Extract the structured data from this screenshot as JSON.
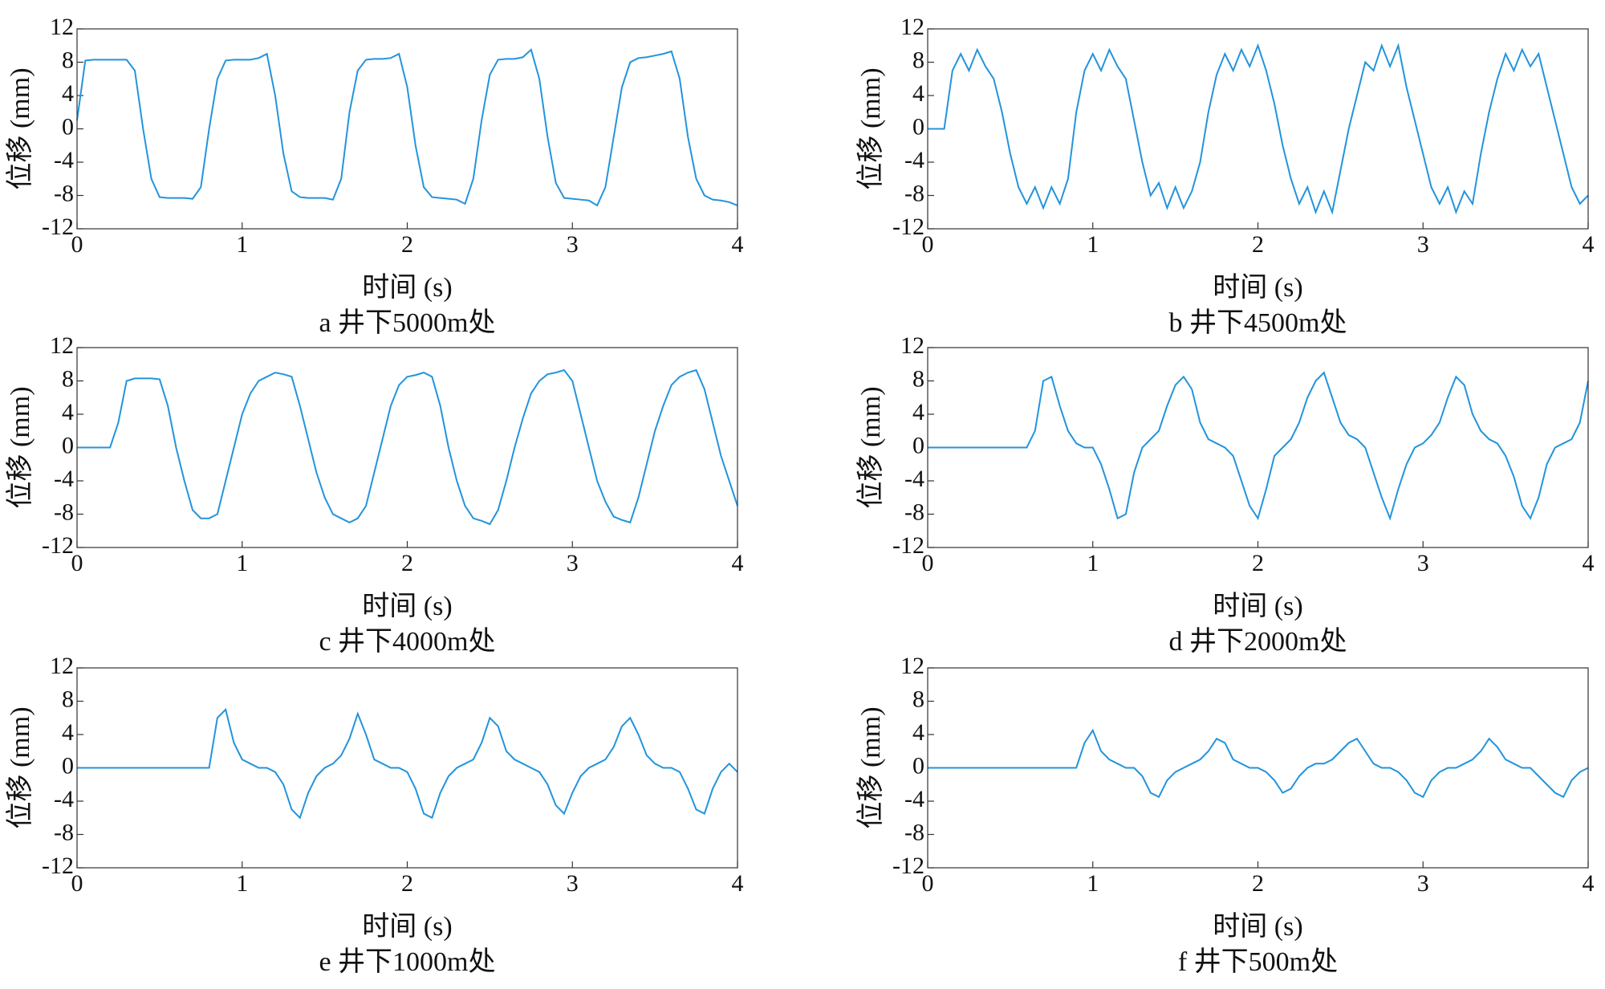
{
  "chart_data": [
    {
      "type": "line",
      "title": "a 井下5000m处",
      "x_label": "时间 (s)",
      "y_label": "位移 (mm)",
      "xlim": [
        0,
        4
      ],
      "ylim": [
        -12,
        12
      ],
      "xticks": [
        0,
        1,
        2,
        3,
        4
      ],
      "yticks": [
        -12,
        -8,
        -4,
        0,
        4,
        8,
        12
      ],
      "x": [
        0,
        0.05,
        0.1,
        0.15,
        0.2,
        0.25,
        0.3,
        0.35,
        0.4,
        0.45,
        0.5,
        0.55,
        0.6,
        0.65,
        0.7,
        0.75,
        0.8,
        0.85,
        0.9,
        0.95,
        1,
        1.05,
        1.1,
        1.15,
        1.2,
        1.25,
        1.3,
        1.35,
        1.4,
        1.45,
        1.5,
        1.55,
        1.6,
        1.65,
        1.7,
        1.75,
        1.8,
        1.85,
        1.9,
        1.95,
        2,
        2.05,
        2.1,
        2.15,
        2.2,
        2.25,
        2.3,
        2.35,
        2.4,
        2.45,
        2.5,
        2.55,
        2.6,
        2.65,
        2.7,
        2.75,
        2.8,
        2.85,
        2.9,
        2.95,
        3,
        3.05,
        3.1,
        3.15,
        3.2,
        3.25,
        3.3,
        3.35,
        3.4,
        3.45,
        3.5,
        3.55,
        3.6,
        3.65,
        3.7,
        3.75,
        3.8,
        3.85,
        3.9,
        3.95,
        4
      ],
      "series": [
        {
          "color": "#2394dc",
          "values": [
            1,
            8.2,
            8.3,
            8.3,
            8.3,
            8.3,
            8.3,
            7,
            0,
            -6,
            -8.2,
            -8.3,
            -8.3,
            -8.3,
            -8.4,
            -7,
            0,
            6,
            8.2,
            8.3,
            8.3,
            8.3,
            8.5,
            9,
            4,
            -3,
            -7.5,
            -8.2,
            -8.3,
            -8.3,
            -8.3,
            -8.5,
            -6,
            2,
            7,
            8.3,
            8.4,
            8.4,
            8.5,
            9,
            5,
            -2,
            -7,
            -8.2,
            -8.3,
            -8.4,
            -8.5,
            -9,
            -6,
            1,
            6.5,
            8.3,
            8.4,
            8.4,
            8.6,
            9.5,
            6,
            -1,
            -6.5,
            -8.3,
            -8.4,
            -8.5,
            -8.6,
            -9.2,
            -7,
            -1,
            5,
            8,
            8.5,
            8.6,
            8.8,
            9,
            9.3,
            6,
            -1,
            -6,
            -8,
            -8.5,
            -8.6,
            -8.8,
            -9.2
          ]
        }
      ]
    },
    {
      "type": "line",
      "title": "b 井下4500m处",
      "x_label": "时间 (s)",
      "y_label": "位移 (mm)",
      "xlim": [
        0,
        4
      ],
      "ylim": [
        -12,
        12
      ],
      "xticks": [
        0,
        1,
        2,
        3,
        4
      ],
      "yticks": [
        -12,
        -8,
        -4,
        0,
        4,
        8,
        12
      ],
      "x": [
        0,
        0.05,
        0.1,
        0.15,
        0.2,
        0.25,
        0.3,
        0.35,
        0.4,
        0.45,
        0.5,
        0.55,
        0.6,
        0.65,
        0.7,
        0.75,
        0.8,
        0.85,
        0.9,
        0.95,
        1,
        1.05,
        1.1,
        1.15,
        1.2,
        1.25,
        1.3,
        1.35,
        1.4,
        1.45,
        1.5,
        1.55,
        1.6,
        1.65,
        1.7,
        1.75,
        1.8,
        1.85,
        1.9,
        1.95,
        2,
        2.05,
        2.1,
        2.15,
        2.2,
        2.25,
        2.3,
        2.35,
        2.4,
        2.45,
        2.5,
        2.55,
        2.6,
        2.65,
        2.7,
        2.75,
        2.8,
        2.85,
        2.9,
        2.95,
        3,
        3.05,
        3.1,
        3.15,
        3.2,
        3.25,
        3.3,
        3.35,
        3.4,
        3.45,
        3.5,
        3.55,
        3.6,
        3.65,
        3.7,
        3.75,
        3.8,
        3.85,
        3.9,
        3.95,
        4
      ],
      "series": [
        {
          "color": "#2394dc",
          "values": [
            0,
            0,
            0,
            7,
            9,
            7,
            9.5,
            7.5,
            6,
            2,
            -3,
            -7,
            -9,
            -7,
            -9.5,
            -7,
            -9,
            -6,
            2,
            7,
            9,
            7,
            9.5,
            7.5,
            6,
            1,
            -4,
            -8,
            -6.5,
            -9.5,
            -7,
            -9.5,
            -7.5,
            -4,
            2,
            6.5,
            9,
            7,
            9.5,
            7.5,
            10,
            7,
            3,
            -2,
            -6,
            -9,
            -7,
            -10,
            -7.5,
            -10,
            -5,
            0,
            4,
            8,
            7,
            10,
            7.5,
            10,
            5,
            1,
            -3,
            -7,
            -9,
            -7,
            -10,
            -7.5,
            -9,
            -3,
            2,
            6,
            9,
            7,
            9.5,
            7.5,
            9,
            5,
            1,
            -3,
            -7,
            -9,
            -8
          ]
        }
      ]
    },
    {
      "type": "line",
      "title": "c 井下4000m处",
      "x_label": "时间 (s)",
      "y_label": "位移 (mm)",
      "xlim": [
        0,
        4
      ],
      "ylim": [
        -12,
        12
      ],
      "xticks": [
        0,
        1,
        2,
        3,
        4
      ],
      "yticks": [
        -12,
        -8,
        -4,
        0,
        4,
        8,
        12
      ],
      "x": [
        0,
        0.05,
        0.1,
        0.15,
        0.2,
        0.25,
        0.3,
        0.35,
        0.4,
        0.45,
        0.5,
        0.55,
        0.6,
        0.65,
        0.7,
        0.75,
        0.8,
        0.85,
        0.9,
        0.95,
        1,
        1.05,
        1.1,
        1.15,
        1.2,
        1.25,
        1.3,
        1.35,
        1.4,
        1.45,
        1.5,
        1.55,
        1.6,
        1.65,
        1.7,
        1.75,
        1.8,
        1.85,
        1.9,
        1.95,
        2,
        2.05,
        2.1,
        2.15,
        2.2,
        2.25,
        2.3,
        2.35,
        2.4,
        2.45,
        2.5,
        2.55,
        2.6,
        2.65,
        2.7,
        2.75,
        2.8,
        2.85,
        2.9,
        2.95,
        3,
        3.05,
        3.1,
        3.15,
        3.2,
        3.25,
        3.3,
        3.35,
        3.4,
        3.45,
        3.5,
        3.55,
        3.6,
        3.65,
        3.7,
        3.75,
        3.8,
        3.85,
        3.9,
        3.95,
        4
      ],
      "series": [
        {
          "color": "#2394dc",
          "values": [
            0,
            0,
            0,
            0,
            0,
            3,
            8,
            8.3,
            8.3,
            8.3,
            8.2,
            5,
            0,
            -4,
            -7.5,
            -8.5,
            -8.5,
            -8,
            -4,
            0,
            4,
            6.5,
            8,
            8.5,
            9,
            8.8,
            8.5,
            5,
            1,
            -3,
            -6,
            -8,
            -8.5,
            -9,
            -8.5,
            -7,
            -3,
            1,
            5,
            7.5,
            8.5,
            8.7,
            9,
            8.5,
            5,
            0,
            -4,
            -7,
            -8.5,
            -8.8,
            -9.2,
            -7.5,
            -4,
            0,
            3.5,
            6.5,
            8,
            8.8,
            9,
            9.3,
            8,
            4,
            0,
            -4,
            -6.5,
            -8.3,
            -8.7,
            -9,
            -6,
            -2,
            2,
            5,
            7.5,
            8.5,
            9,
            9.3,
            7,
            3,
            -1,
            -4,
            -7
          ]
        }
      ]
    },
    {
      "type": "line",
      "title": "d 井下2000m处",
      "x_label": "时间 (s)",
      "y_label": "位移 (mm)",
      "xlim": [
        0,
        4
      ],
      "ylim": [
        -12,
        12
      ],
      "xticks": [
        0,
        1,
        2,
        3,
        4
      ],
      "yticks": [
        -12,
        -8,
        -4,
        0,
        4,
        8,
        12
      ],
      "x": [
        0,
        0.05,
        0.1,
        0.15,
        0.2,
        0.25,
        0.3,
        0.35,
        0.4,
        0.45,
        0.5,
        0.55,
        0.6,
        0.65,
        0.7,
        0.75,
        0.8,
        0.85,
        0.9,
        0.95,
        1,
        1.05,
        1.1,
        1.15,
        1.2,
        1.25,
        1.3,
        1.35,
        1.4,
        1.45,
        1.5,
        1.55,
        1.6,
        1.65,
        1.7,
        1.75,
        1.8,
        1.85,
        1.9,
        1.95,
        2,
        2.05,
        2.1,
        2.15,
        2.2,
        2.25,
        2.3,
        2.35,
        2.4,
        2.45,
        2.5,
        2.55,
        2.6,
        2.65,
        2.7,
        2.75,
        2.8,
        2.85,
        2.9,
        2.95,
        3,
        3.05,
        3.1,
        3.15,
        3.2,
        3.25,
        3.3,
        3.35,
        3.4,
        3.45,
        3.5,
        3.55,
        3.6,
        3.65,
        3.7,
        3.75,
        3.8,
        3.85,
        3.9,
        3.95,
        4
      ],
      "series": [
        {
          "color": "#2394dc",
          "values": [
            0,
            0,
            0,
            0,
            0,
            0,
            0,
            0,
            0,
            0,
            0,
            0,
            0,
            2,
            8,
            8.5,
            5,
            2,
            0.5,
            0,
            0,
            -2,
            -5,
            -8.5,
            -8,
            -3,
            0,
            1,
            2,
            5,
            7.5,
            8.5,
            7,
            3,
            1,
            0.5,
            0,
            -1,
            -4,
            -7,
            -8.5,
            -5,
            -1,
            0,
            1,
            3,
            6,
            8,
            9,
            6,
            3,
            1.5,
            1,
            0,
            -3,
            -6,
            -8.5,
            -5,
            -2,
            0,
            0.5,
            1.5,
            3,
            6,
            8.5,
            7.5,
            4,
            2,
            1,
            0.5,
            -1,
            -3.5,
            -7,
            -8.5,
            -6,
            -2,
            0,
            0.5,
            1,
            3,
            8
          ]
        }
      ]
    },
    {
      "type": "line",
      "title": "e 井下1000m处",
      "x_label": "时间 (s)",
      "y_label": "位移 (mm)",
      "xlim": [
        0,
        4
      ],
      "ylim": [
        -12,
        12
      ],
      "xticks": [
        0,
        1,
        2,
        3,
        4
      ],
      "yticks": [
        -12,
        -8,
        -4,
        0,
        4,
        8,
        12
      ],
      "x": [
        0,
        0.05,
        0.1,
        0.15,
        0.2,
        0.25,
        0.3,
        0.35,
        0.4,
        0.45,
        0.5,
        0.55,
        0.6,
        0.65,
        0.7,
        0.75,
        0.8,
        0.85,
        0.9,
        0.95,
        1,
        1.05,
        1.1,
        1.15,
        1.2,
        1.25,
        1.3,
        1.35,
        1.4,
        1.45,
        1.5,
        1.55,
        1.6,
        1.65,
        1.7,
        1.75,
        1.8,
        1.85,
        1.9,
        1.95,
        2,
        2.05,
        2.1,
        2.15,
        2.2,
        2.25,
        2.3,
        2.35,
        2.4,
        2.45,
        2.5,
        2.55,
        2.6,
        2.65,
        2.7,
        2.75,
        2.8,
        2.85,
        2.9,
        2.95,
        3,
        3.05,
        3.1,
        3.15,
        3.2,
        3.25,
        3.3,
        3.35,
        3.4,
        3.45,
        3.5,
        3.55,
        3.6,
        3.65,
        3.7,
        3.75,
        3.8,
        3.85,
        3.9,
        3.95,
        4
      ],
      "series": [
        {
          "color": "#2394dc",
          "values": [
            0,
            0,
            0,
            0,
            0,
            0,
            0,
            0,
            0,
            0,
            0,
            0,
            0,
            0,
            0,
            0,
            0,
            6,
            7,
            3,
            1,
            0.5,
            0,
            0,
            -0.5,
            -2,
            -5,
            -6,
            -3,
            -1,
            0,
            0.5,
            1.5,
            3.5,
            6.5,
            4,
            1,
            0.5,
            0,
            0,
            -0.5,
            -2.5,
            -5.5,
            -6,
            -3,
            -1,
            0,
            0.5,
            1,
            3,
            6,
            5,
            2,
            1,
            0.5,
            0,
            -0.5,
            -2,
            -4.5,
            -5.5,
            -3,
            -1,
            0,
            0.5,
            1,
            2.5,
            5,
            6,
            4,
            1.5,
            0.5,
            0,
            0,
            -0.5,
            -2.5,
            -5,
            -5.5,
            -2.5,
            -0.5,
            0.5,
            -0.5
          ]
        }
      ]
    },
    {
      "type": "line",
      "title": "f 井下500m处",
      "x_label": "时间 (s)",
      "y_label": "位移 (mm)",
      "xlim": [
        0,
        4
      ],
      "ylim": [
        -12,
        12
      ],
      "xticks": [
        0,
        1,
        2,
        3,
        4
      ],
      "yticks": [
        -12,
        -8,
        -4,
        0,
        4,
        8,
        12
      ],
      "x": [
        0,
        0.05,
        0.1,
        0.15,
        0.2,
        0.25,
        0.3,
        0.35,
        0.4,
        0.45,
        0.5,
        0.55,
        0.6,
        0.65,
        0.7,
        0.75,
        0.8,
        0.85,
        0.9,
        0.95,
        1,
        1.05,
        1.1,
        1.15,
        1.2,
        1.25,
        1.3,
        1.35,
        1.4,
        1.45,
        1.5,
        1.55,
        1.6,
        1.65,
        1.7,
        1.75,
        1.8,
        1.85,
        1.9,
        1.95,
        2,
        2.05,
        2.1,
        2.15,
        2.2,
        2.25,
        2.3,
        2.35,
        2.4,
        2.45,
        2.5,
        2.55,
        2.6,
        2.65,
        2.7,
        2.75,
        2.8,
        2.85,
        2.9,
        2.95,
        3,
        3.05,
        3.1,
        3.15,
        3.2,
        3.25,
        3.3,
        3.35,
        3.4,
        3.45,
        3.5,
        3.55,
        3.6,
        3.65,
        3.7,
        3.75,
        3.8,
        3.85,
        3.9,
        3.95,
        4
      ],
      "series": [
        {
          "color": "#2394dc",
          "values": [
            0,
            0,
            0,
            0,
            0,
            0,
            0,
            0,
            0,
            0,
            0,
            0,
            0,
            0,
            0,
            0,
            0,
            0,
            0,
            3,
            4.5,
            2,
            1,
            0.5,
            0,
            0,
            -1,
            -3,
            -3.5,
            -1.5,
            -0.5,
            0,
            0.5,
            1,
            2,
            3.5,
            3,
            1,
            0.5,
            0,
            0,
            -0.5,
            -1.5,
            -3,
            -2.5,
            -1,
            0,
            0.5,
            0.5,
            1,
            2,
            3,
            3.5,
            2,
            0.5,
            0,
            0,
            -0.5,
            -1.5,
            -3,
            -3.5,
            -1.5,
            -0.5,
            0,
            0,
            0.5,
            1,
            2,
            3.5,
            2.5,
            1,
            0.5,
            0,
            0,
            -1,
            -2,
            -3,
            -3.5,
            -1.5,
            -0.5,
            0
          ]
        }
      ]
    }
  ]
}
